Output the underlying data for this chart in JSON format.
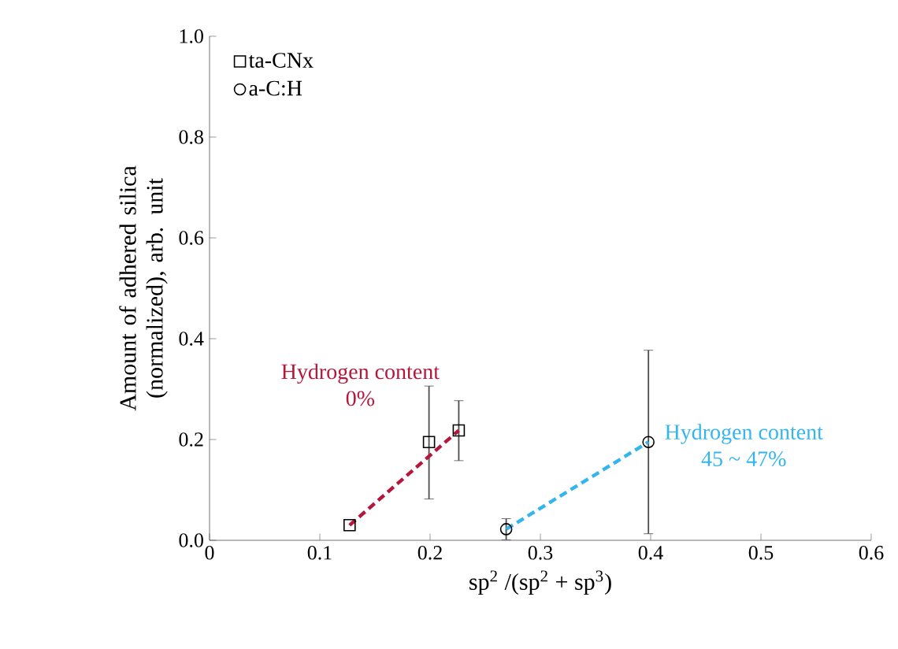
{
  "chart_data": {
    "type": "scatter",
    "xlabel": "sp$^{2}$ /(sp$^{2}$ + sp$^{3}$)",
    "ylabel": "Amount of adhered silica (normalized), arb. unit",
    "xlim": [
      0,
      0.6
    ],
    "ylim": [
      0,
      1.0
    ],
    "xticks": [
      0,
      0.1,
      0.2,
      0.3,
      0.4,
      0.5,
      0.6
    ],
    "yticks": [
      {
        "value": 0,
        "label": "0.0"
      },
      {
        "value": 0.2,
        "label": "0.2"
      },
      {
        "value": 0.4,
        "label": "0.4"
      },
      {
        "value": 0.6,
        "label": "0.6"
      },
      {
        "value": 0.8,
        "label": "0.8"
      },
      {
        "value": 1.0,
        "label": "1.0"
      }
    ],
    "legend": "top left",
    "grid": false,
    "series": [
      {
        "name": "ta-CNx",
        "marker": "square",
        "color": "#000000",
        "x": [
          0.127,
          0.199,
          0.226
        ],
        "values": [
          0.03,
          0.195,
          0.218
        ],
        "errors": [
          null,
          [
            0.082,
            0.306
          ],
          [
            0.158,
            0.277
          ]
        ]
      },
      {
        "name": "a-C:H",
        "marker": "circle",
        "color": "#000000",
        "x": [
          0.269,
          0.398
        ],
        "values": [
          0.022,
          0.195
        ],
        "errors": [
          0.021,
          [
            0.013,
            0.377
          ]
        ]
      },
      {
        "type": "line",
        "marker": "none",
        "line_style": "dashed",
        "color": "#b5173c",
        "x": [
          0.127,
          0.226
        ],
        "values": [
          0.03,
          0.218
        ]
      },
      {
        "type": "line",
        "marker": "none",
        "line_style": "dashed",
        "color": "#33b5f0",
        "x": [
          0.269,
          0.398
        ],
        "values": [
          0.022,
          0.195
        ]
      }
    ],
    "annotations": [
      "Hydrogen content 0%",
      "Hydrogen content 45 ~ 47%"
    ]
  }
}
